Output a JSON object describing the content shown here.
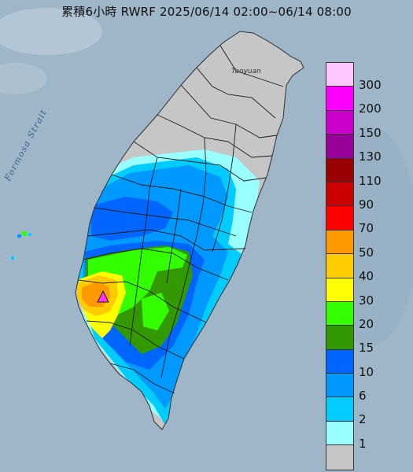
{
  "title": "累積6小時 RWRF 2025/06/14 02:00~06/14 08:00",
  "map_labels": {
    "strait": "Formosa Strait",
    "city": "Taoyuan"
  },
  "legend": {
    "levels": [
      {
        "label": "300",
        "color": "#ffc6ff"
      },
      {
        "label": "200",
        "color": "#ff00ff"
      },
      {
        "label": "150",
        "color": "#cc00cc"
      },
      {
        "label": "130",
        "color": "#990099"
      },
      {
        "label": "110",
        "color": "#990000"
      },
      {
        "label": "90",
        "color": "#cc0000"
      },
      {
        "label": "70",
        "color": "#ff0000"
      },
      {
        "label": "50",
        "color": "#ff9900"
      },
      {
        "label": "40",
        "color": "#ffcc00"
      },
      {
        "label": "30",
        "color": "#ffff00"
      },
      {
        "label": "20",
        "color": "#33ff00"
      },
      {
        "label": "15",
        "color": "#339900"
      },
      {
        "label": "10",
        "color": "#0066ff"
      },
      {
        "label": "6",
        "color": "#0099ff"
      },
      {
        "label": "2",
        "color": "#00ccff"
      },
      {
        "label": "1",
        "color": "#99ffff"
      },
      {
        "label": "",
        "color": "#c6c6c6"
      }
    ]
  },
  "colors": {
    "sea": "#9fb6c9",
    "land_mountain": "#d8dcde",
    "no_rain": "#c6c6c6",
    "boundary": "#1a1a1a",
    "marker": "#ff33ff"
  },
  "icons": {
    "max_marker": "triangle-marker-icon"
  }
}
